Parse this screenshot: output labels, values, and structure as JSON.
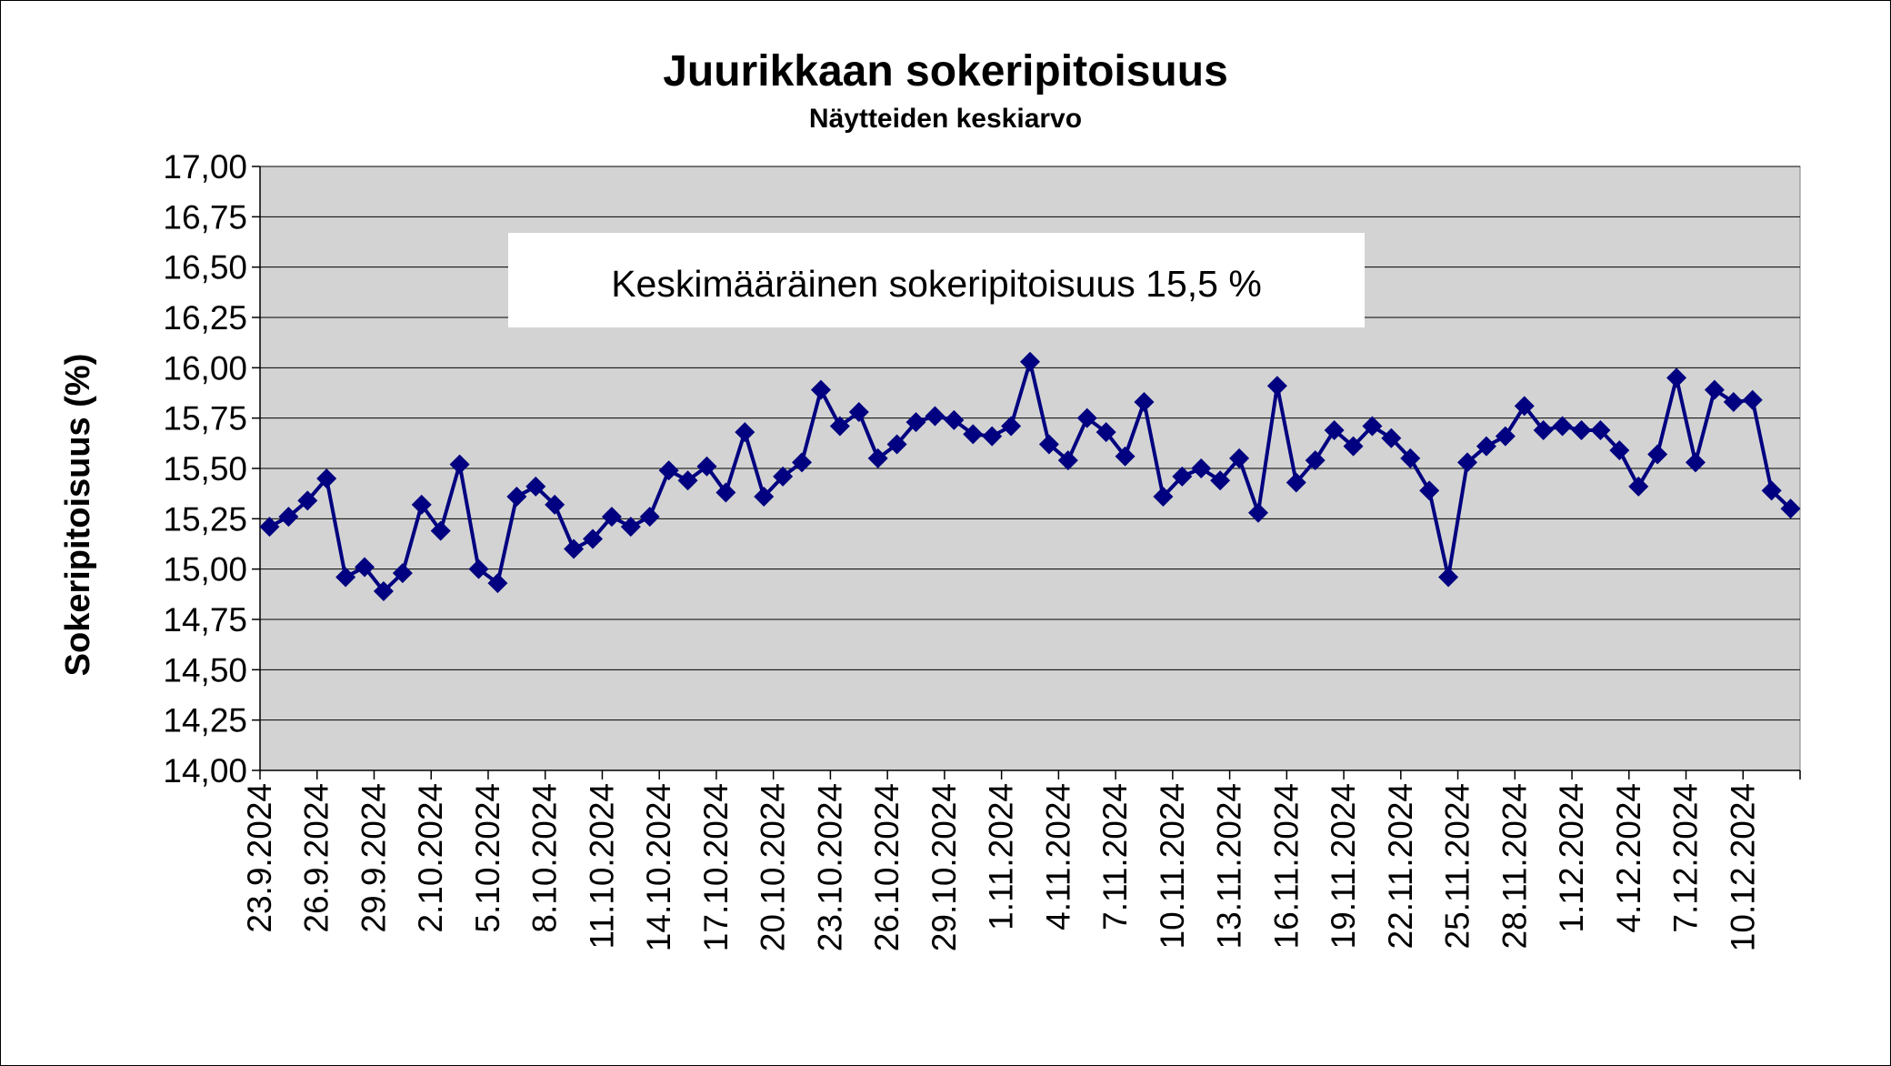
{
  "chart_data": {
    "type": "line",
    "title": "Juurikkaan sokeripitoisuus",
    "subtitle": "Näytteiden keskiarvo",
    "xlabel": "",
    "ylabel": "Sokeripitoisuus (%)",
    "ylim": [
      14.0,
      17.0
    ],
    "y_ticks": [
      "14,00",
      "14,25",
      "14,50",
      "14,75",
      "15,00",
      "15,25",
      "15,50",
      "15,75",
      "16,00",
      "16,25",
      "16,50",
      "16,75",
      "17,00"
    ],
    "grid": true,
    "plot_background": "#D3D3D3",
    "series_color": "#000080",
    "marker": "diamond",
    "annotation": "Keskimääräinen sokeripitoisuus 15,5 %",
    "x_tick_every": 3,
    "x_tick_labels": [
      "23.9.2024",
      "26.9.2024",
      "29.9.2024",
      "2.10.2024",
      "5.10.2024",
      "8.10.2024",
      "11.10.2024",
      "14.10.2024",
      "17.10.2024",
      "20.10.2024",
      "23.10.2024",
      "26.10.2024",
      "29.10.2024",
      "1.11.2024",
      "4.11.2024",
      "7.11.2024",
      "10.11.2024",
      "13.11.2024",
      "16.11.2024",
      "19.11.2024",
      "22.11.2024",
      "25.11.2024",
      "28.11.2024",
      "1.12.2024",
      "4.12.2024",
      "7.12.2024",
      "10.12.2024"
    ],
    "values": [
      15.21,
      15.26,
      15.34,
      15.45,
      14.96,
      15.01,
      14.89,
      14.98,
      15.32,
      15.19,
      15.52,
      15.0,
      14.93,
      15.36,
      15.41,
      15.32,
      15.1,
      15.15,
      15.26,
      15.21,
      15.26,
      15.49,
      15.44,
      15.51,
      15.38,
      15.68,
      15.36,
      15.46,
      15.53,
      15.89,
      15.71,
      15.78,
      15.55,
      15.62,
      15.73,
      15.76,
      15.74,
      15.67,
      15.66,
      15.71,
      16.03,
      15.62,
      15.54,
      15.75,
      15.68,
      15.56,
      15.83,
      15.36,
      15.46,
      15.5,
      15.44,
      15.55,
      15.28,
      15.91,
      15.43,
      15.54,
      15.69,
      15.61,
      15.71,
      15.65,
      15.55,
      15.39,
      14.96,
      15.53,
      15.61,
      15.66,
      15.81,
      15.69,
      15.71,
      15.69,
      15.69,
      15.59,
      15.41,
      15.57,
      15.95,
      15.53,
      15.89,
      15.83,
      15.84,
      15.39,
      15.3
    ]
  }
}
